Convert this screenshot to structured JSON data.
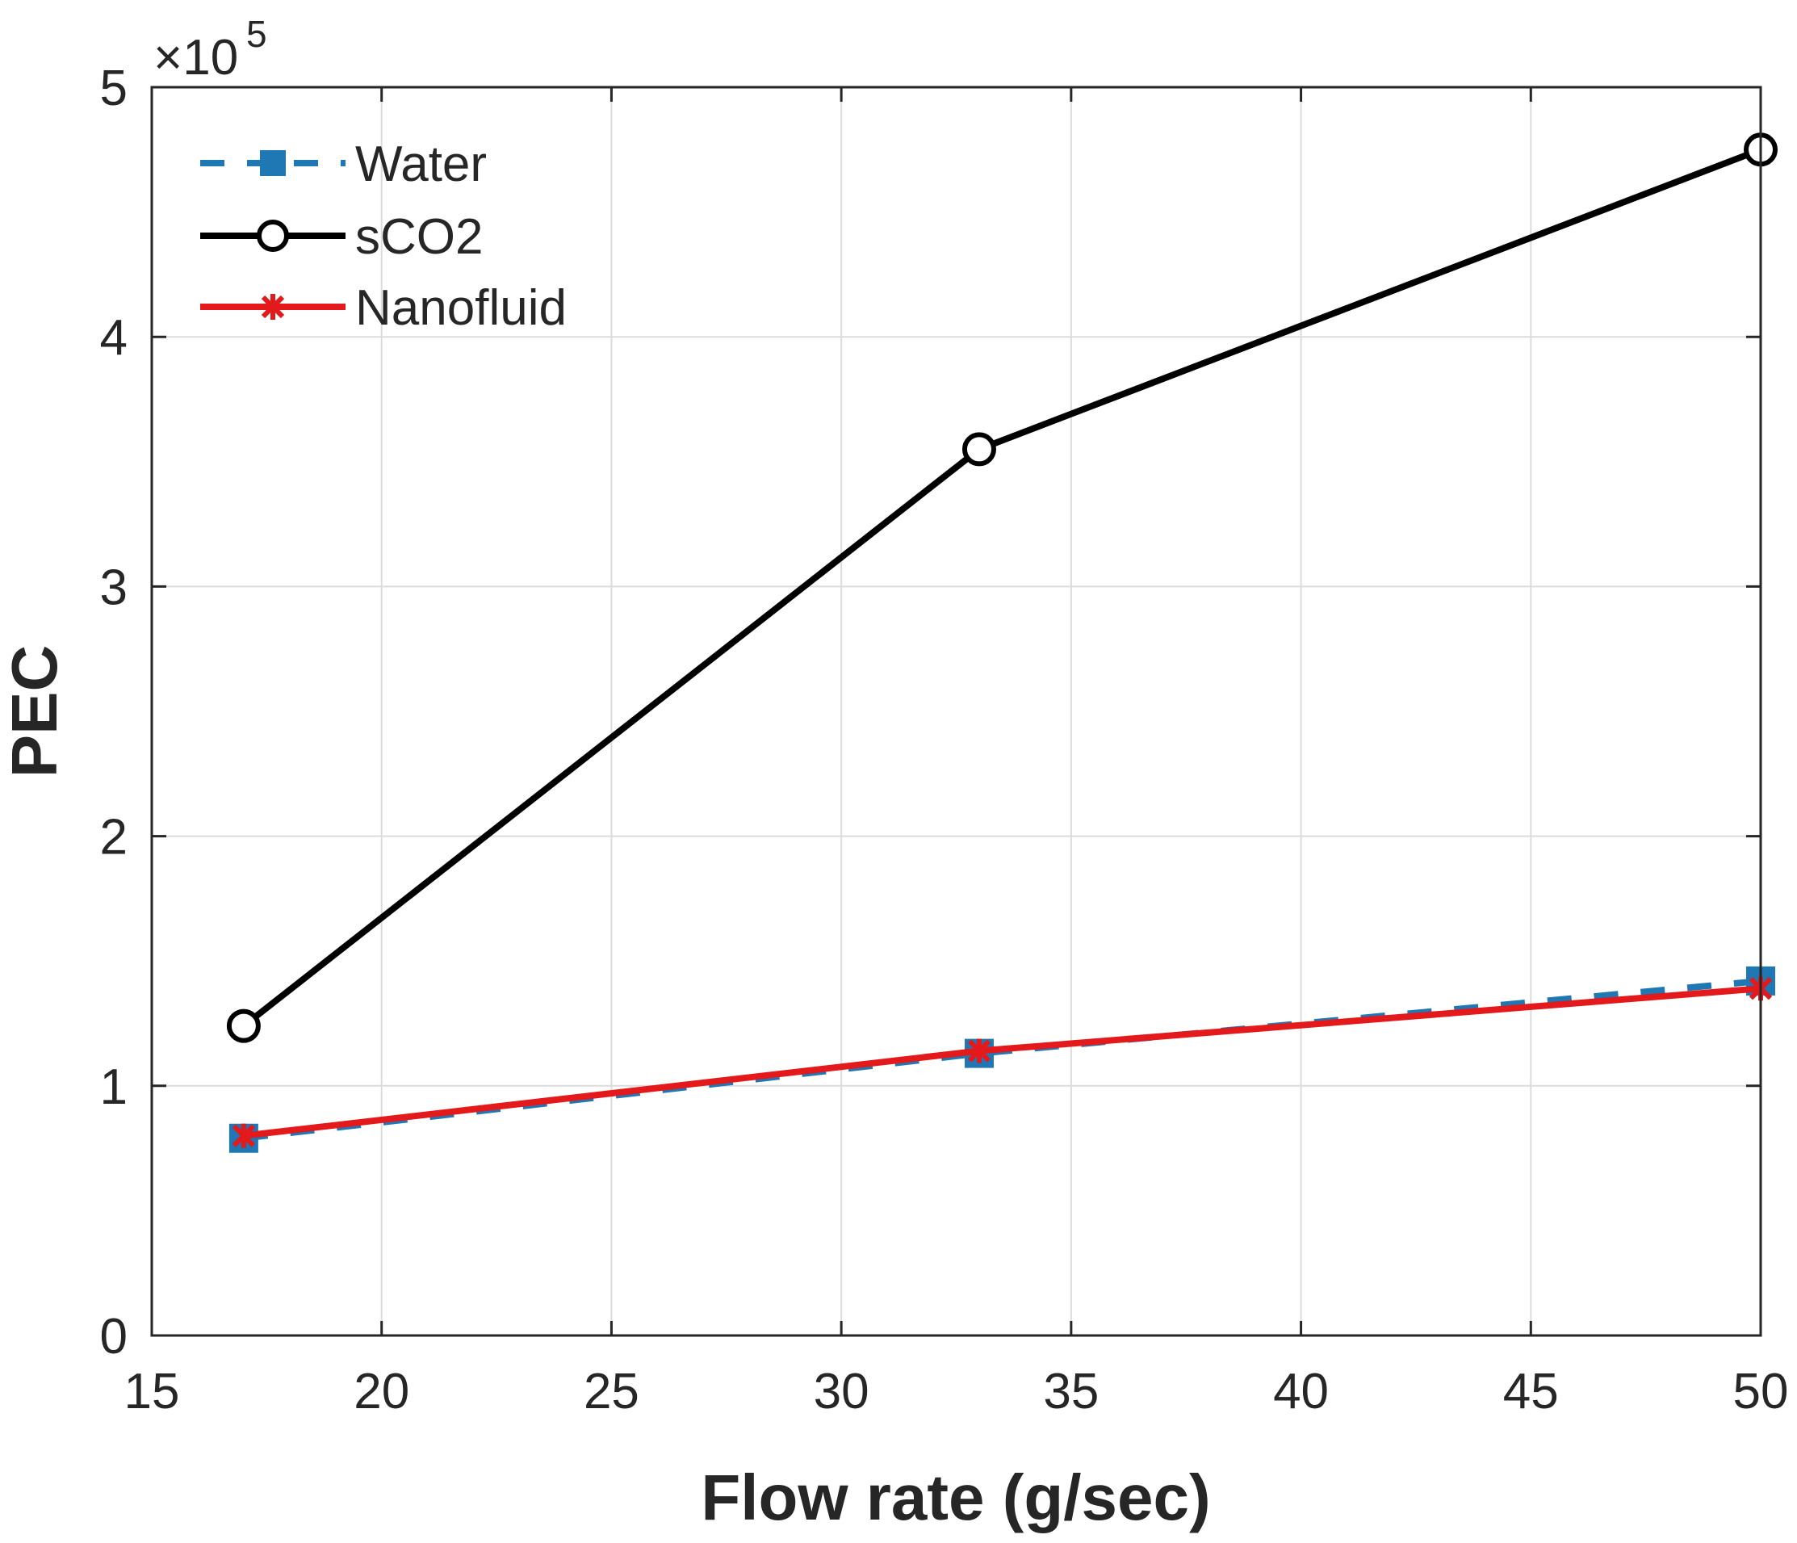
{
  "chart_data": {
    "type": "line",
    "title": "",
    "xlabel": "Flow rate (g/sec)",
    "ylabel": "PEC",
    "xlim": [
      15,
      50
    ],
    "ylim": [
      0,
      5
    ],
    "y_multiplier_label": "×10",
    "y_multiplier_exponent": "5",
    "xticks": [
      15,
      20,
      25,
      30,
      35,
      40,
      45,
      50
    ],
    "yticks": [
      0,
      1,
      2,
      3,
      4,
      5
    ],
    "grid": true,
    "legend_position": "top-left",
    "x": [
      17,
      33,
      50
    ],
    "series": [
      {
        "name": "Water",
        "values": [
          0.79,
          1.13,
          1.42
        ],
        "color": "#1f77b4",
        "line_style": "dashed",
        "marker": "square"
      },
      {
        "name": "sCO2",
        "values": [
          1.24,
          3.55,
          4.75
        ],
        "color": "#000000",
        "line_style": "solid",
        "marker": "circle"
      },
      {
        "name": "Nanofluid",
        "values": [
          0.8,
          1.14,
          1.39
        ],
        "color": "#e3191c",
        "line_style": "solid",
        "marker": "asterisk"
      }
    ]
  }
}
